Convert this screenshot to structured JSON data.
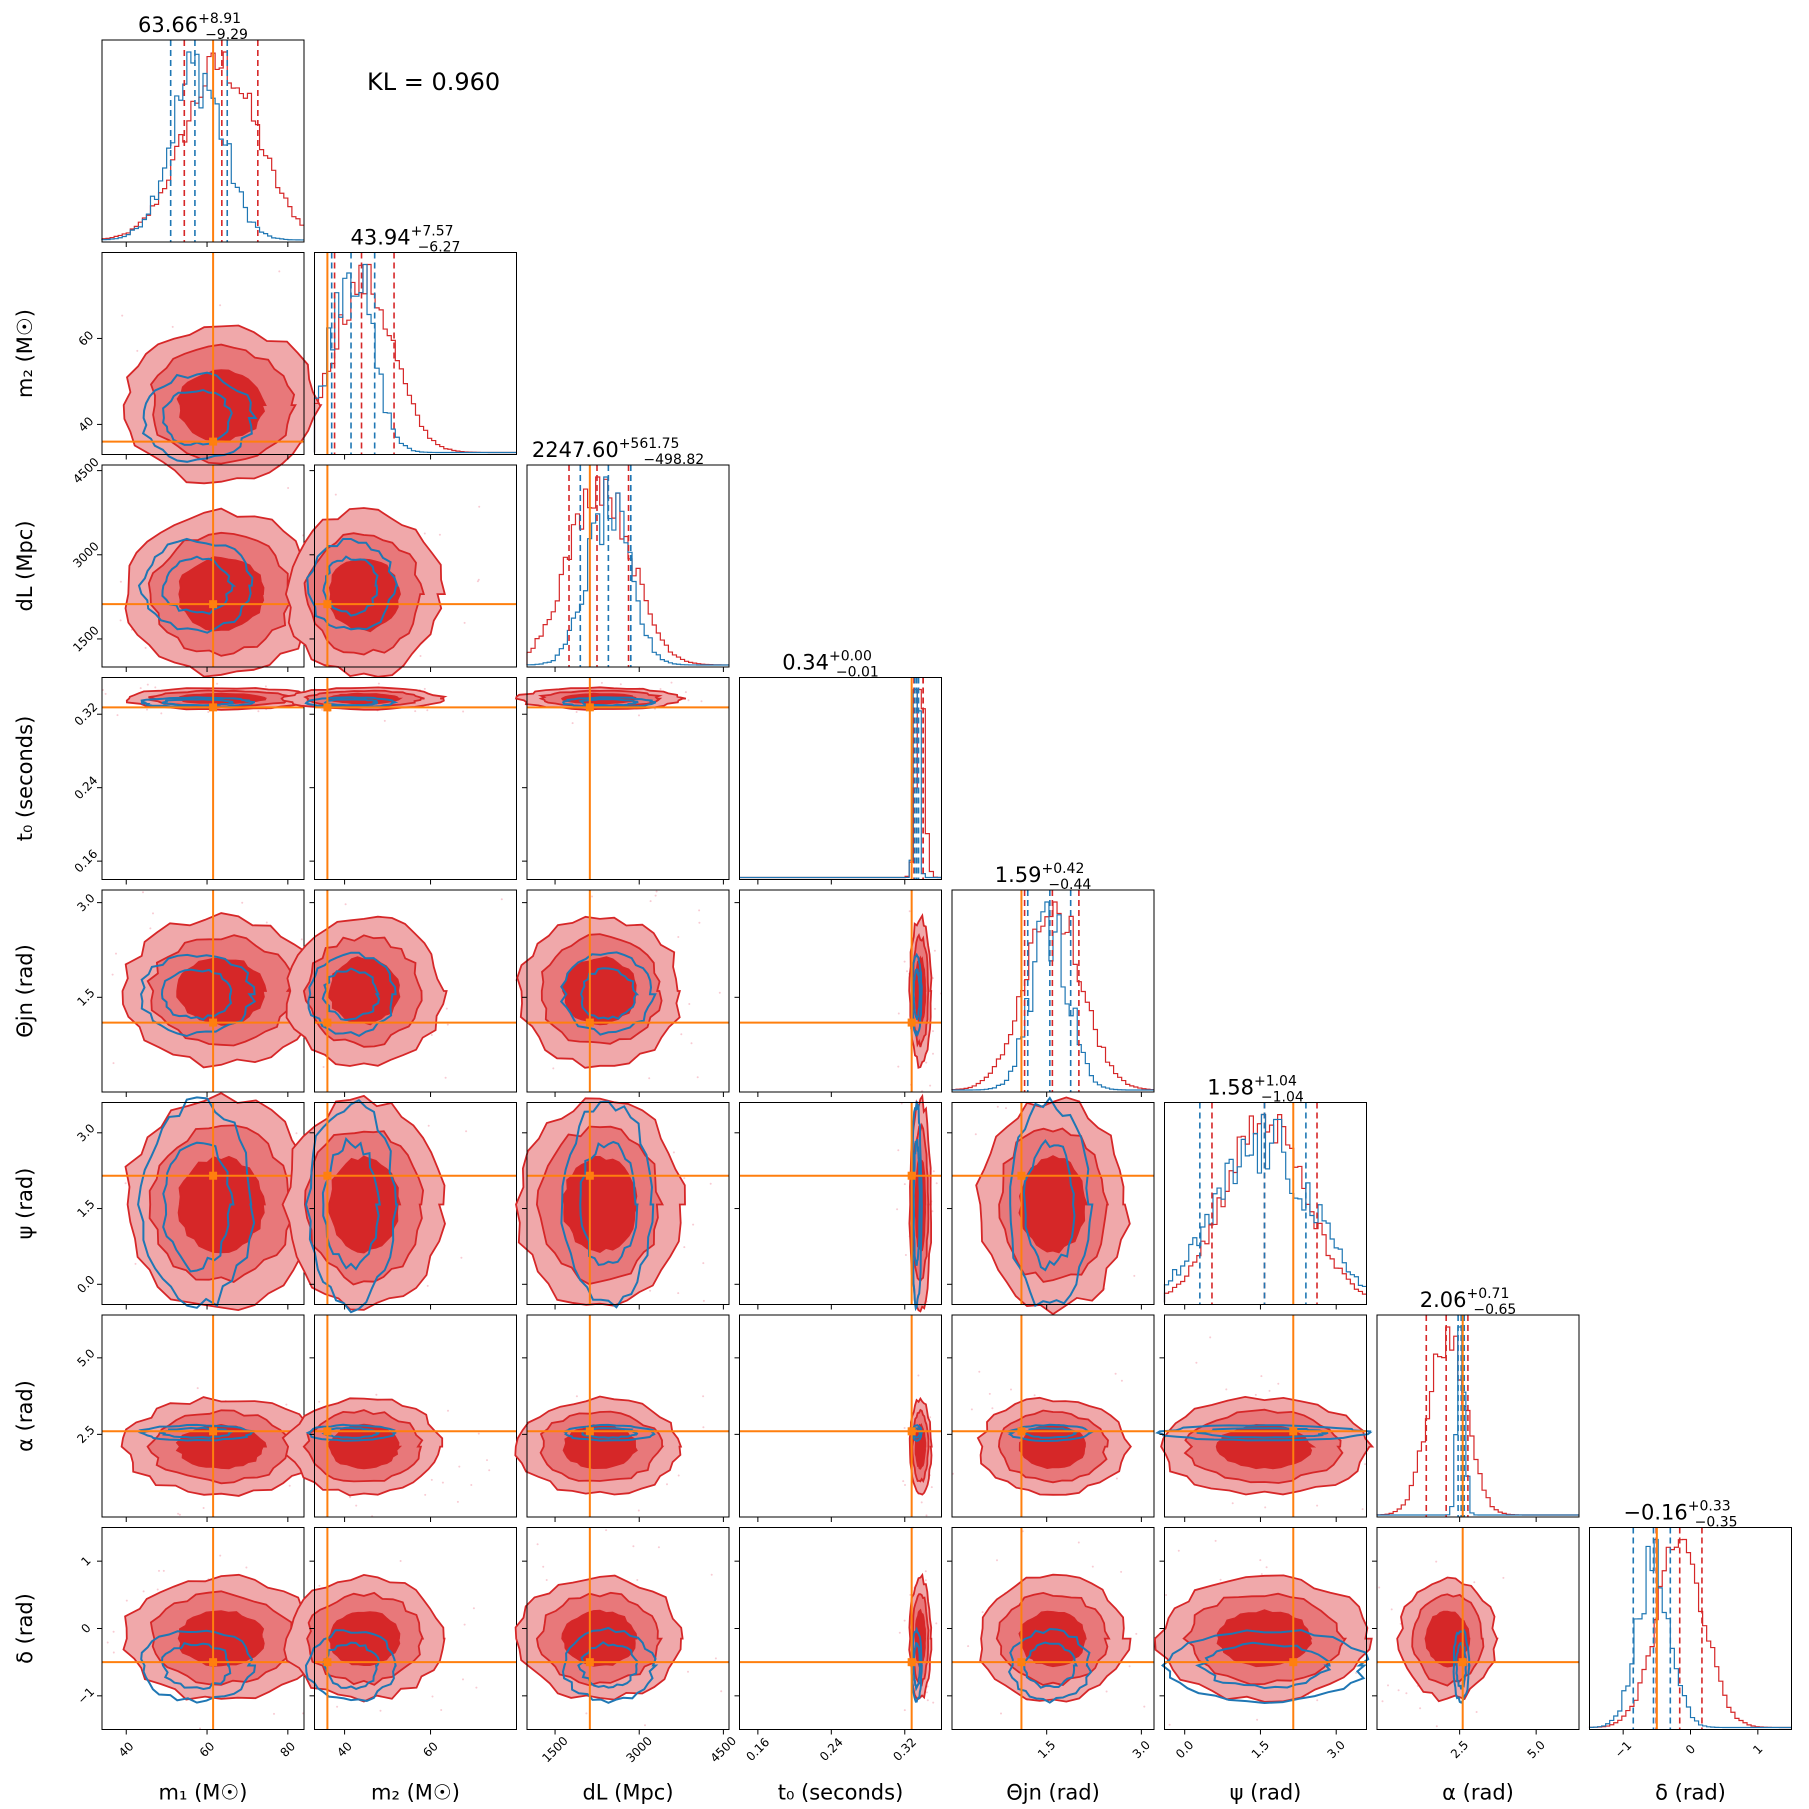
{
  "kl_label": "KL = 0.960",
  "colors": {
    "posterior_a": "#d62728",
    "posterior_a_fill_light": "#f0a8aa",
    "posterior_a_fill_mid": "#e8787a",
    "posterior_b": "#1f77b4",
    "truth": "#ff7f0e"
  },
  "chart_data": {
    "type": "corner",
    "grid": false,
    "params": [
      {
        "key": "m1",
        "label": "m₁ (M☉)",
        "range": [
          34,
          84
        ],
        "ticks": [
          40,
          60,
          80
        ],
        "tick_labels": [
          "40",
          "60",
          "80"
        ],
        "truth": 61.5,
        "median": 63.66,
        "plus": "+8.91",
        "minus": "−9.29",
        "title": "63.66",
        "a_mean": 63.5,
        "a_sd": 9.2,
        "a_q": [
          54.37,
          63.66,
          72.57
        ],
        "b_mean": 57.5,
        "b_sd": 6.5,
        "b_q": [
          51.0,
          57.0,
          65.0
        ]
      },
      {
        "key": "m2",
        "label": "m₂ (M☉)",
        "range": [
          33,
          80
        ],
        "ticks": [
          40,
          60
        ],
        "tick_labels": [
          "40",
          "60"
        ],
        "truth": 36.0,
        "median": 43.94,
        "plus": "+7.57",
        "minus": "−6.27",
        "title": "43.94",
        "a_mean": 44.5,
        "a_sd": 7.0,
        "a_q": [
          37.67,
          43.94,
          51.51
        ],
        "b_mean": 41.5,
        "b_sd": 4.8,
        "b_q": [
          37.0,
          41.5,
          47.0
        ]
      },
      {
        "key": "dL",
        "label": "dL (Mpc)",
        "range": [
          1000,
          4600
        ],
        "ticks": [
          1500,
          3000,
          4500
        ],
        "tick_labels": [
          "1500",
          "3000",
          "4500"
        ],
        "truth": 2120,
        "median": 2247.6,
        "plus": "+561.75",
        "minus": "−498.82",
        "title": "2247.60",
        "a_mean": 2300,
        "a_sd": 560,
        "a_q": [
          1748.78,
          2247.6,
          2809.35
        ],
        "b_mean": 2450,
        "b_sd": 380,
        "b_q": [
          1950,
          2450,
          2850
        ]
      },
      {
        "key": "t0",
        "label": "t₀ (seconds)",
        "range": [
          0.14,
          0.36
        ],
        "ticks": [
          0.16,
          0.24,
          0.32
        ],
        "tick_labels": [
          "0.16",
          "0.24",
          "0.32"
        ],
        "truth": 0.3275,
        "median": 0.34,
        "plus": "+0.00",
        "minus": "−0.01",
        "title": "0.34",
        "a_mean": 0.337,
        "a_sd": 0.0045,
        "a_q": [
          0.33,
          0.34,
          0.34
        ],
        "b_mean": 0.333,
        "b_sd": 0.0025,
        "b_q": [
          0.331,
          0.333,
          0.335
        ]
      },
      {
        "key": "thetajn",
        "label": "Θjn (rad)",
        "range": [
          0.0,
          3.2
        ],
        "ticks": [
          1.5,
          3.0
        ],
        "tick_labels": [
          "1.5",
          "3.0"
        ],
        "truth": 1.1,
        "median": 1.59,
        "plus": "+0.42",
        "minus": "−0.44",
        "title": "1.59",
        "a_mean": 1.6,
        "a_sd": 0.45,
        "a_q": [
          1.15,
          1.59,
          2.01
        ],
        "b_mean": 1.55,
        "b_sd": 0.3,
        "b_q": [
          1.2,
          1.55,
          1.88
        ]
      },
      {
        "key": "psi",
        "label": "ψ (rad)",
        "range": [
          -0.4,
          3.6
        ],
        "ticks": [
          0.0,
          1.5,
          3.0
        ],
        "tick_labels": [
          "0.0",
          "1.5",
          "3.0"
        ],
        "truth": 2.15,
        "median": 1.58,
        "plus": "+1.04",
        "minus": "−1.04",
        "title": "1.58",
        "a_mean": 1.58,
        "a_sd": 0.8,
        "a_q": [
          0.54,
          1.58,
          2.62
        ],
        "b_mean": 1.58,
        "b_sd": 0.95,
        "b_q": [
          0.3,
          1.58,
          2.4
        ]
      },
      {
        "key": "alpha",
        "label": "α (rad)",
        "range": [
          -0.2,
          6.4
        ],
        "ticks": [
          2.5,
          5.0
        ],
        "tick_labels": [
          "2.5",
          "5.0"
        ],
        "truth": 2.6,
        "median": 2.06,
        "plus": "+0.71",
        "minus": "−0.65",
        "title": "2.06",
        "a_mean": 2.1,
        "a_sd": 0.6,
        "a_q": [
          1.41,
          2.06,
          2.77
        ],
        "b_mean": 2.55,
        "b_sd": 0.12,
        "b_q": [
          2.45,
          2.55,
          2.65
        ]
      },
      {
        "key": "delta",
        "label": "δ (rad)",
        "range": [
          -1.5,
          1.5
        ],
        "ticks": [
          -1,
          0,
          1
        ],
        "tick_labels": [
          "−1",
          "0",
          "1"
        ],
        "truth": -0.5,
        "median": -0.16,
        "plus": "+0.33",
        "minus": "−0.35",
        "title": "−0.16",
        "a_mean": -0.15,
        "a_sd": 0.35,
        "a_q": [
          -0.51,
          -0.16,
          0.17
        ],
        "b_mean": -0.55,
        "b_sd": 0.25,
        "b_q": [
          -0.85,
          -0.55,
          -0.3
        ]
      }
    ]
  }
}
